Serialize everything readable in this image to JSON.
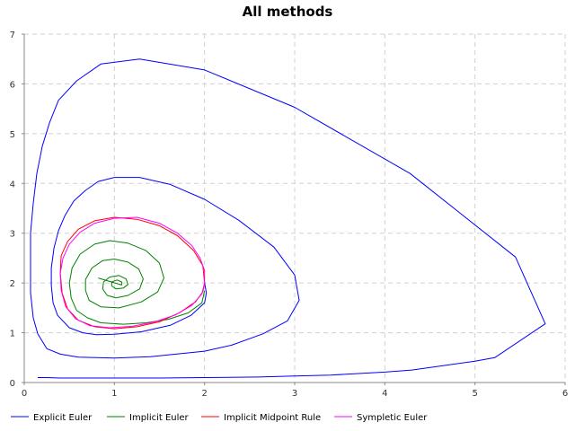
{
  "chart_data": {
    "type": "line",
    "title": "All methods",
    "xlabel": "",
    "ylabel": "",
    "xlim": [
      0,
      6
    ],
    "ylim": [
      0,
      7
    ],
    "x_ticks": [
      0,
      1,
      2,
      3,
      4,
      5,
      6
    ],
    "y_ticks": [
      0,
      1,
      2,
      3,
      4,
      5,
      6,
      7
    ],
    "grid": true,
    "legend_position": "bottom",
    "series": [
      {
        "name": "Explicit Euler",
        "color": "#0000ff",
        "points": [
          [
            0.15,
            0.1
          ],
          [
            0.25,
            0.1
          ],
          [
            0.4,
            0.09
          ],
          [
            0.8,
            0.09
          ],
          [
            1.5,
            0.09
          ],
          [
            2.0,
            0.1
          ],
          [
            2.6,
            0.11
          ],
          [
            3.0,
            0.13
          ],
          [
            3.4,
            0.15
          ],
          [
            4.0,
            0.21
          ],
          [
            4.3,
            0.25
          ],
          [
            5.0,
            0.43
          ],
          [
            5.22,
            0.5
          ],
          [
            5.78,
            1.18
          ],
          [
            5.45,
            2.52
          ],
          [
            4.28,
            4.2
          ],
          [
            3.0,
            5.53
          ],
          [
            2.0,
            6.28
          ],
          [
            1.28,
            6.5
          ],
          [
            0.85,
            6.4
          ],
          [
            0.58,
            6.06
          ],
          [
            0.38,
            5.67
          ],
          [
            0.28,
            5.22
          ],
          [
            0.2,
            4.75
          ],
          [
            0.14,
            4.2
          ],
          [
            0.1,
            3.6
          ],
          [
            0.07,
            3.0
          ],
          [
            0.07,
            2.4
          ],
          [
            0.07,
            1.8
          ],
          [
            0.1,
            1.3
          ],
          [
            0.15,
            0.98
          ],
          [
            0.25,
            0.68
          ],
          [
            0.4,
            0.57
          ],
          [
            0.6,
            0.51
          ],
          [
            1.0,
            0.49
          ],
          [
            1.4,
            0.52
          ],
          [
            2.0,
            0.63
          ],
          [
            2.3,
            0.75
          ],
          [
            2.65,
            0.98
          ],
          [
            2.92,
            1.24
          ],
          [
            3.05,
            1.65
          ],
          [
            3.0,
            2.16
          ],
          [
            2.77,
            2.72
          ],
          [
            2.38,
            3.26
          ],
          [
            2.0,
            3.68
          ],
          [
            1.62,
            3.98
          ],
          [
            1.28,
            4.12
          ],
          [
            1.0,
            4.12
          ],
          [
            0.82,
            4.04
          ],
          [
            0.68,
            3.86
          ],
          [
            0.55,
            3.65
          ],
          [
            0.45,
            3.35
          ],
          [
            0.38,
            3.05
          ],
          [
            0.33,
            2.7
          ],
          [
            0.3,
            2.3
          ],
          [
            0.3,
            1.95
          ],
          [
            0.32,
            1.6
          ],
          [
            0.37,
            1.35
          ],
          [
            0.5,
            1.1
          ],
          [
            0.65,
            1.0
          ],
          [
            0.8,
            0.96
          ],
          [
            1.0,
            0.97
          ],
          [
            1.3,
            1.02
          ],
          [
            1.62,
            1.15
          ],
          [
            1.85,
            1.35
          ],
          [
            2.0,
            1.6
          ],
          [
            2.02,
            1.8
          ],
          [
            2.0,
            2.0
          ]
        ]
      },
      {
        "name": "Implicit Euler",
        "color": "#008000",
        "points": [
          [
            2.0,
            1.85
          ],
          [
            1.97,
            1.6
          ],
          [
            1.82,
            1.4
          ],
          [
            1.6,
            1.27
          ],
          [
            1.35,
            1.2
          ],
          [
            1.1,
            1.17
          ],
          [
            0.85,
            1.2
          ],
          [
            0.7,
            1.3
          ],
          [
            0.58,
            1.45
          ],
          [
            0.52,
            1.7
          ],
          [
            0.5,
            2.0
          ],
          [
            0.53,
            2.3
          ],
          [
            0.62,
            2.58
          ],
          [
            0.78,
            2.78
          ],
          [
            0.95,
            2.85
          ],
          [
            1.15,
            2.8
          ],
          [
            1.35,
            2.65
          ],
          [
            1.5,
            2.4
          ],
          [
            1.55,
            2.1
          ],
          [
            1.48,
            1.82
          ],
          [
            1.3,
            1.62
          ],
          [
            1.05,
            1.5
          ],
          [
            0.85,
            1.52
          ],
          [
            0.72,
            1.65
          ],
          [
            0.68,
            1.85
          ],
          [
            0.68,
            2.07
          ],
          [
            0.75,
            2.3
          ],
          [
            0.87,
            2.45
          ],
          [
            1.0,
            2.48
          ],
          [
            1.15,
            2.42
          ],
          [
            1.27,
            2.28
          ],
          [
            1.32,
            2.08
          ],
          [
            1.28,
            1.88
          ],
          [
            1.15,
            1.75
          ],
          [
            1.02,
            1.7
          ],
          [
            0.92,
            1.75
          ],
          [
            0.87,
            1.88
          ],
          [
            0.88,
            2.02
          ],
          [
            0.95,
            2.12
          ],
          [
            1.05,
            2.15
          ],
          [
            1.13,
            2.08
          ],
          [
            1.15,
            1.97
          ],
          [
            1.1,
            1.9
          ],
          [
            1.02,
            1.88
          ],
          [
            0.97,
            1.94
          ],
          [
            0.97,
            2.02
          ],
          [
            1.03,
            2.06
          ],
          [
            1.08,
            2.02
          ],
          [
            1.08,
            1.96
          ],
          [
            0.82,
            2.1
          ]
        ]
      },
      {
        "name": "Implicit Midpoint Rule",
        "color": "#ff0000",
        "points": [
          [
            2.0,
            2.0
          ],
          [
            1.98,
            2.35
          ],
          [
            1.88,
            2.65
          ],
          [
            1.7,
            2.95
          ],
          [
            1.5,
            3.15
          ],
          [
            1.25,
            3.28
          ],
          [
            1.0,
            3.32
          ],
          [
            0.78,
            3.25
          ],
          [
            0.6,
            3.08
          ],
          [
            0.48,
            2.83
          ],
          [
            0.41,
            2.55
          ],
          [
            0.4,
            2.2
          ],
          [
            0.42,
            1.8
          ],
          [
            0.48,
            1.48
          ],
          [
            0.6,
            1.25
          ],
          [
            0.78,
            1.12
          ],
          [
            1.0,
            1.08
          ],
          [
            1.25,
            1.12
          ],
          [
            1.5,
            1.22
          ],
          [
            1.72,
            1.4
          ],
          [
            1.9,
            1.62
          ],
          [
            1.98,
            1.82
          ],
          [
            2.0,
            2.0
          ]
        ]
      },
      {
        "name": "Sympletic Euler",
        "color": "#ff00ff",
        "points": [
          [
            2.0,
            2.0
          ],
          [
            2.0,
            2.25
          ],
          [
            1.95,
            2.5
          ],
          [
            1.86,
            2.75
          ],
          [
            1.7,
            3.0
          ],
          [
            1.5,
            3.2
          ],
          [
            1.25,
            3.32
          ],
          [
            1.0,
            3.3
          ],
          [
            0.78,
            3.2
          ],
          [
            0.62,
            3.02
          ],
          [
            0.5,
            2.78
          ],
          [
            0.43,
            2.5
          ],
          [
            0.4,
            2.2
          ],
          [
            0.41,
            1.85
          ],
          [
            0.46,
            1.52
          ],
          [
            0.57,
            1.28
          ],
          [
            0.73,
            1.14
          ],
          [
            0.95,
            1.1
          ],
          [
            1.2,
            1.13
          ],
          [
            1.45,
            1.22
          ],
          [
            1.68,
            1.36
          ],
          [
            1.86,
            1.55
          ],
          [
            1.97,
            1.78
          ],
          [
            2.0,
            2.0
          ]
        ]
      }
    ]
  }
}
